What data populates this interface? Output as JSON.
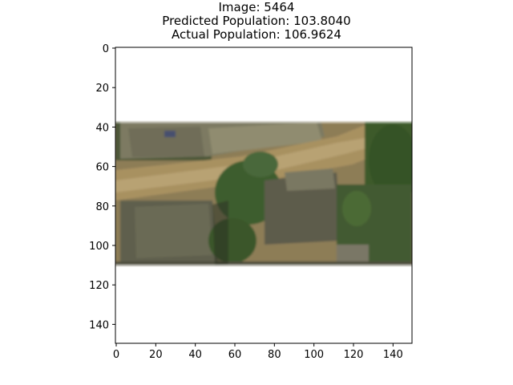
{
  "figure": {
    "title_lines": [
      "Image: 5464",
      "Predicted Population: 103.8040",
      "Actual Population: 106.9624"
    ]
  },
  "axes": {
    "x_ticks": [
      0,
      20,
      40,
      60,
      80,
      100,
      120,
      140
    ],
    "y_ticks": [
      0,
      20,
      40,
      60,
      80,
      100,
      120,
      140
    ],
    "x_range": [
      0,
      150
    ],
    "y_range": [
      0,
      150
    ],
    "y_inverted": true
  },
  "image_content": {
    "description_icon": "aerial-satellite-photo",
    "visible_rows": [
      37,
      112
    ],
    "colors": {
      "roof": "#6e6a55",
      "vegetation": "#3c5a2e",
      "ground": "#a08b5f",
      "path": "#b09a6c",
      "shadow": "#2f3527"
    }
  }
}
